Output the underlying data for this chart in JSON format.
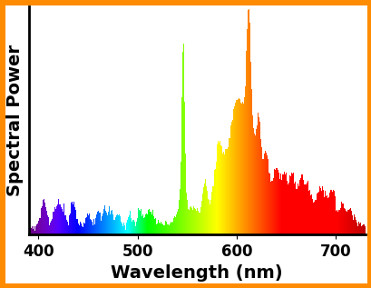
{
  "title": "",
  "xlabel": "Wavelength (nm)",
  "ylabel": "Spectral Power",
  "xlim": [
    390,
    730
  ],
  "ylim": [
    0,
    1.0
  ],
  "border_color": "#FF8C00",
  "border_width": 6,
  "background_color": "#FFFFFF",
  "xlabel_fontsize": 14,
  "ylabel_fontsize": 14,
  "tick_fontsize": 12,
  "xticks": [
    400,
    500,
    600,
    700
  ],
  "wavelength_min": 390,
  "wavelength_max": 730
}
